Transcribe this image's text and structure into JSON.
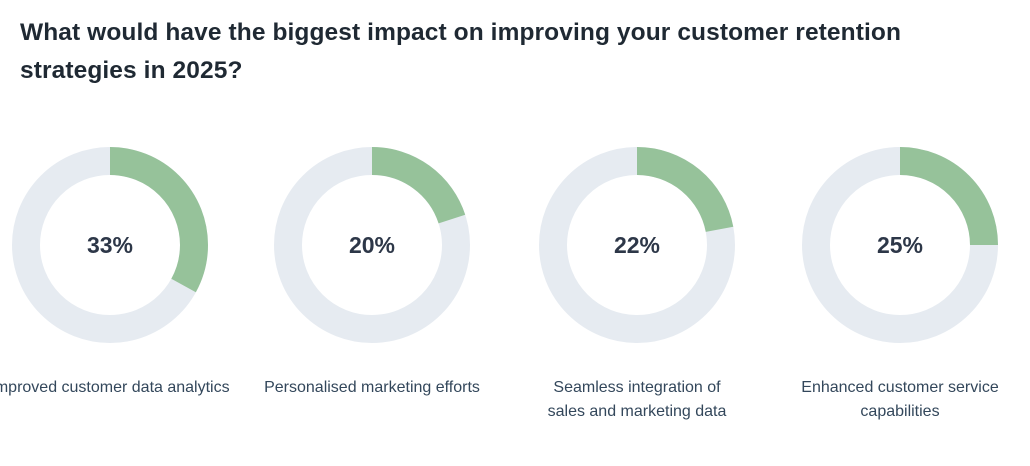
{
  "title": "What would have the biggest impact on improving your customer retention strategies in 2025?",
  "colors": {
    "filled": "#96c29a",
    "track": "#e6ebf1",
    "text": "#2d3748"
  },
  "items": [
    {
      "value": 33,
      "display": "33%",
      "label": "Improved customer data analytics"
    },
    {
      "value": 20,
      "display": "20%",
      "label": "Personalised marketing efforts"
    },
    {
      "value": 22,
      "display": "22%",
      "label": "Seamless integration of sales and marketing data"
    },
    {
      "value": 25,
      "display": "25%",
      "label": "Enhanced customer service capabilities"
    }
  ],
  "chart_data": {
    "type": "pie",
    "subtype": "donut",
    "title": "What would have the biggest impact on improving your customer retention strategies in 2025?",
    "categories": [
      "Improved customer data analytics",
      "Personalised marketing efforts",
      "Seamless integration of sales and marketing data",
      "Enhanced customer service capabilities"
    ],
    "values": [
      33,
      20,
      22,
      25
    ],
    "unit": "%",
    "note": "Each category rendered as its own donut showing share out of 100%"
  }
}
